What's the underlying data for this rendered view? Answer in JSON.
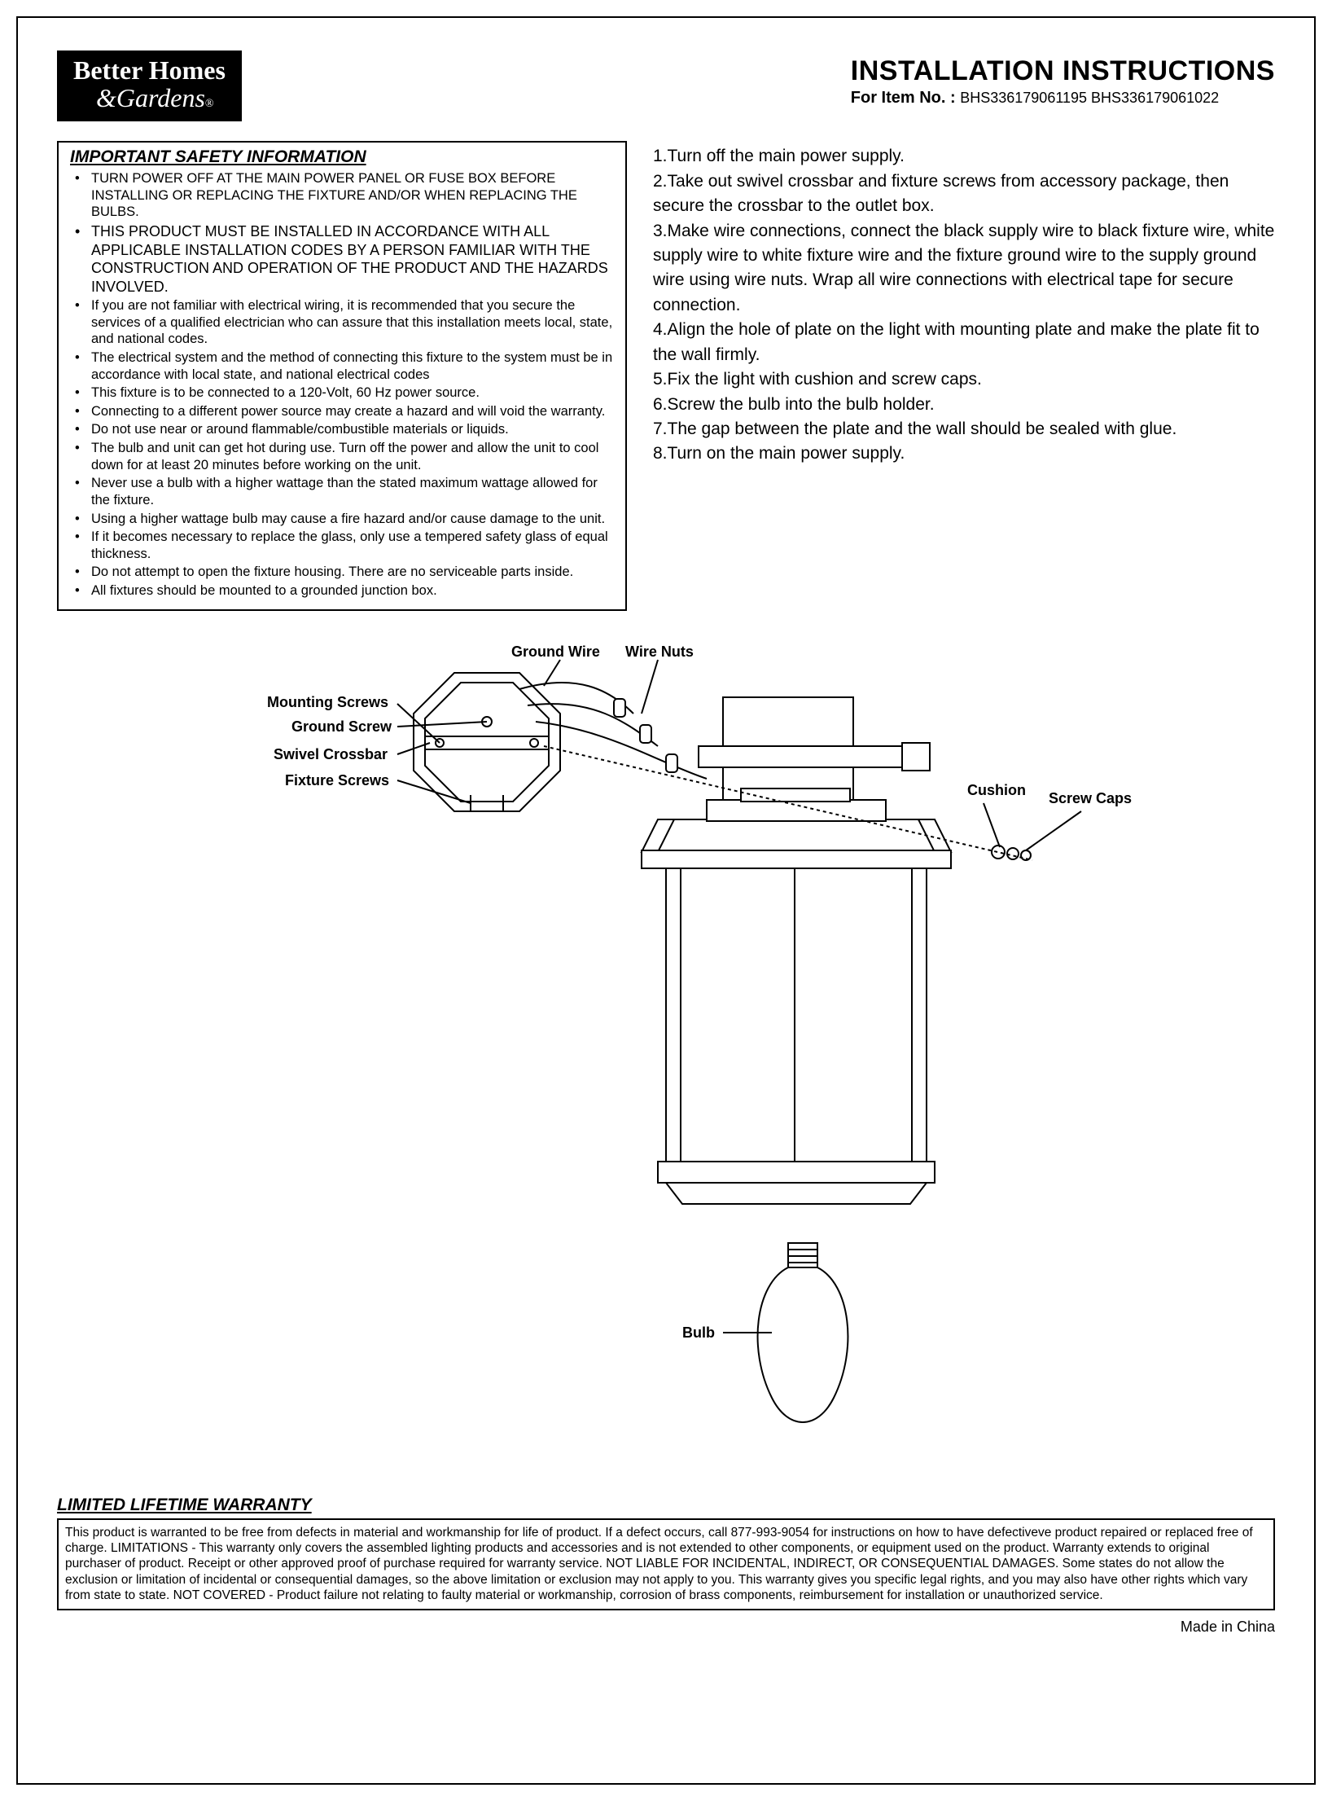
{
  "logo": {
    "line1": "Better Homes",
    "line2": "&Gardens",
    "reg": "®"
  },
  "header": {
    "title": "INSTALLATION INSTRUCTIONS",
    "forItemLabel": "For Item No. : ",
    "itemNumbers": "BHS336179061195 BHS336179061022"
  },
  "safety": {
    "title": "IMPORTANT SAFETY INFORMATION",
    "items": [
      {
        "text": "TURN POWER OFF AT THE MAIN POWER PANEL OR FUSE BOX BEFORE INSTALLING OR REPLACING THE FIXTURE AND/OR WHEN REPLACING THE BULBS.",
        "big": false
      },
      {
        "text": "THIS PRODUCT MUST BE INSTALLED IN ACCORDANCE WITH ALL APPLICABLE INSTALLATION CODES BY A PERSON FAMILIAR WITH THE CONSTRUCTION AND OPERATION OF THE PRODUCT AND THE HAZARDS INVOLVED.",
        "big": true
      },
      {
        "text": "If you are not familiar with electrical wiring, it is recommended that you secure the services of a qualified electrician who can assure that this installation meets local, state, and national codes.",
        "big": false
      },
      {
        "text": "The electrical system and the method of connecting this fixture to the system must be in accordance with local state, and national electrical codes",
        "big": false
      },
      {
        "text": "This fixture is to be connected to a 120-Volt, 60 Hz power source.",
        "big": false
      },
      {
        "text": "Connecting to a different power source may create a hazard and will void the warranty.",
        "big": false
      },
      {
        "text": "Do not use near or around flammable/combustible materials or liquids.",
        "big": false
      },
      {
        "text": "The bulb and unit can get hot during use. Turn off the power and allow the unit to cool down for at least 20 minutes before working on the unit.",
        "big": false
      },
      {
        "text": "Never use a bulb with a higher wattage than the stated maximum wattage allowed for the fixture.",
        "big": false
      },
      {
        "text": "Using a higher wattage bulb may cause a fire hazard and/or cause damage to the unit.",
        "big": false
      },
      {
        "text": "If it becomes necessary to replace the glass, only use a tempered safety glass of equal thickness.",
        "big": false
      },
      {
        "text": "Do not attempt to open the fixture housing. There are no serviceable parts inside.",
        "big": false
      },
      {
        "text": "All fixtures should be mounted to a grounded junction box.",
        "big": false
      }
    ]
  },
  "steps": [
    "1.Turn off the main power supply.",
    "2.Take out swivel crossbar and fixture screws from accessory package, then secure the crossbar to the outlet box.",
    "3.Make wire connections, connect the black supply wire to black fixture wire, white supply wire to white fixture wire and the fixture ground wire to the supply ground wire using wire nuts. Wrap all wire connections with electrical tape for secure connection.",
    "4.Align the hole of plate on the light with mounting plate and make the plate fit to the wall firmly.",
    "5.Fix the light with cushion and screw caps.",
    "6.Screw the bulb into the bulb holder.",
    "7.The gap between the plate and the wall should be sealed with glue.",
    "8.Turn on the main power supply."
  ],
  "diagram": {
    "labels": {
      "groundWire": "Ground Wire",
      "wireNuts": "Wire Nuts",
      "mountingScrews": "Mounting Screws",
      "groundScrew": "Ground Screw",
      "swivelCrossbar": "Swivel Crossbar",
      "fixtureScrews": "Fixture Screws",
      "cushion": "Cushion",
      "screwCaps": "Screw Caps",
      "bulb": "Bulb"
    },
    "stroke": "#000000",
    "strokeWidth": 2,
    "fill": "#ffffff"
  },
  "warranty": {
    "title": "LIMITED LIFETIME WARRANTY",
    "body": "This product is warranted to be free from defects in material and workmanship for life of product. If a defect occurs, call 877-993-9054 for instructions on how to have defectiveve product repaired or replaced free of charge. LIMITATIONS - This warranty only covers the assembled lighting products and accessories and is not extended to other components, or equipment used on the product. Warranty extends to original purchaser of  product. Receipt or other approved proof of purchase required for warranty service. NOT LIABLE FOR INCIDENTAL, INDIRECT, OR CONSEQUENTIAL DAMAGES. Some states do not allow the exclusion or limitation of incidental or consequential damages, so the above limitation or exclusion may not apply to you. This warranty gives you specific legal rights, and you may also have other rights which vary from state to state. NOT COVERED - Product failure not relating to faulty material or workmanship, corrosion of brass components, reimbursement for installation or unauthorized service."
  },
  "madeIn": "Made in China"
}
